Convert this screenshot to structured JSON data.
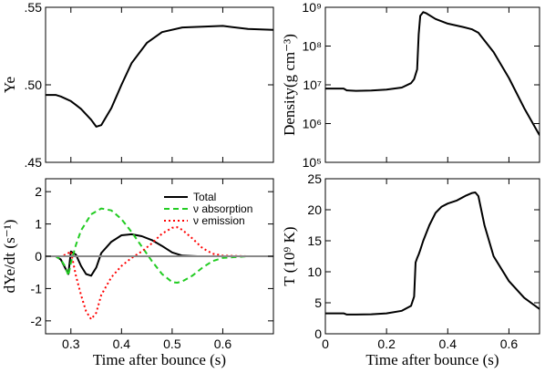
{
  "chart_data": [
    {
      "id": "ye",
      "type": "line",
      "xlabel": "",
      "ylabel": "Ye",
      "xlim": [
        0.25,
        0.7
      ],
      "ylim": [
        0.45,
        0.55
      ],
      "xticks": [
        0.3,
        0.4,
        0.5,
        0.6
      ],
      "yticks": [
        0.45,
        0.5,
        0.55
      ],
      "ytick_labels": [
        ".45",
        ".50",
        ".55"
      ],
      "series": [
        {
          "color": "#000000",
          "dash": "",
          "x": [
            0.25,
            0.27,
            0.28,
            0.29,
            0.3,
            0.31,
            0.32,
            0.33,
            0.34,
            0.35,
            0.36,
            0.38,
            0.4,
            0.42,
            0.45,
            0.48,
            0.52,
            0.56,
            0.6,
            0.65,
            0.7
          ],
          "y": [
            0.4935,
            0.4935,
            0.4925,
            0.491,
            0.4895,
            0.487,
            0.4845,
            0.481,
            0.4775,
            0.473,
            0.474,
            0.485,
            0.5,
            0.514,
            0.527,
            0.534,
            0.537,
            0.5375,
            0.538,
            0.536,
            0.5355
          ]
        }
      ]
    },
    {
      "id": "density",
      "type": "line",
      "xlabel": "",
      "ylabel": "Density(g cm⁻³)",
      "scale_y": "log",
      "xlim": [
        0,
        0.7
      ],
      "ylim": [
        100000,
        1000000000
      ],
      "xticks": [
        0,
        0.2,
        0.4,
        0.6
      ],
      "yticks": [
        100000,
        1000000,
        10000000,
        100000000,
        1000000000
      ],
      "ytick_labels": [
        "10⁵",
        "10⁶",
        "10⁷",
        "10⁸",
        "10⁹"
      ],
      "series": [
        {
          "color": "#000000",
          "dash": "",
          "x": [
            0,
            0.06,
            0.07,
            0.1,
            0.15,
            0.2,
            0.25,
            0.28,
            0.29,
            0.3,
            0.305,
            0.31,
            0.32,
            0.33,
            0.36,
            0.4,
            0.45,
            0.48,
            0.5,
            0.55,
            0.6,
            0.65,
            0.7
          ],
          "y": [
            8000000,
            8000000,
            7200000,
            7000000,
            7100000,
            7500000,
            8500000,
            11000000,
            14000000,
            25000000,
            200000000,
            600000000,
            750000000,
            700000000,
            500000000,
            380000000,
            310000000,
            270000000,
            220000000,
            70000000,
            15000000,
            2500000,
            500000
          ]
        }
      ]
    },
    {
      "id": "dyedt",
      "type": "line",
      "xlabel": "Time after bounce (s)",
      "ylabel": "dYe/dt (s⁻¹)",
      "xlim": [
        0.25,
        0.7
      ],
      "ylim": [
        -2.4,
        2.4
      ],
      "xticks": [
        0.3,
        0.4,
        0.5,
        0.6
      ],
      "yticks": [
        -2,
        -1,
        0,
        1,
        2
      ],
      "ytick_labels": [
        "-2",
        "-1",
        "0",
        "1",
        "2"
      ],
      "legend_position": "top-right",
      "series": [
        {
          "name": "Total",
          "color": "#000000",
          "dash": "",
          "x": [
            0.25,
            0.27,
            0.28,
            0.29,
            0.295,
            0.3,
            0.31,
            0.32,
            0.33,
            0.34,
            0.35,
            0.36,
            0.38,
            0.4,
            0.42,
            0.44,
            0.46,
            0.48,
            0.5,
            0.52,
            0.55,
            0.6,
            0.65,
            0.7
          ],
          "y": [
            0,
            0,
            -0.1,
            -0.4,
            -0.55,
            0.15,
            0.05,
            -0.3,
            -0.55,
            -0.6,
            -0.35,
            0.1,
            0.45,
            0.65,
            0.68,
            0.62,
            0.5,
            0.32,
            0.12,
            0.02,
            0,
            0,
            0,
            0
          ]
        },
        {
          "name": "ν absorption",
          "color": "#22cc22",
          "dash": "6,4",
          "x": [
            0.25,
            0.27,
            0.28,
            0.29,
            0.295,
            0.3,
            0.31,
            0.32,
            0.34,
            0.36,
            0.38,
            0.4,
            0.42,
            0.44,
            0.46,
            0.48,
            0.5,
            0.51,
            0.52,
            0.54,
            0.56,
            0.58,
            0.6,
            0.65,
            0.7
          ],
          "y": [
            0,
            0,
            -0.1,
            -0.35,
            -0.6,
            -0.2,
            0.35,
            0.8,
            1.3,
            1.48,
            1.42,
            1.15,
            0.75,
            0.3,
            -0.15,
            -0.55,
            -0.8,
            -0.82,
            -0.78,
            -0.6,
            -0.35,
            -0.15,
            -0.05,
            0,
            0
          ]
        },
        {
          "name": "ν emission",
          "color": "#ff0000",
          "dash": "2,3",
          "x": [
            0.25,
            0.27,
            0.28,
            0.29,
            0.295,
            0.3,
            0.31,
            0.32,
            0.33,
            0.34,
            0.35,
            0.36,
            0.38,
            0.4,
            0.42,
            0.44,
            0.46,
            0.48,
            0.5,
            0.51,
            0.52,
            0.54,
            0.56,
            0.58,
            0.6,
            0.65,
            0.7
          ],
          "y": [
            0,
            0,
            0,
            0.05,
            0.1,
            0.15,
            -0.6,
            -1.2,
            -1.7,
            -1.95,
            -1.75,
            -1.2,
            -0.65,
            -0.3,
            -0.05,
            0.15,
            0.4,
            0.7,
            0.88,
            0.9,
            0.82,
            0.55,
            0.25,
            0.08,
            0.02,
            0,
            0
          ]
        },
        {
          "name": "",
          "color": "#888888",
          "dash": "",
          "thin": true,
          "x": [
            0.25,
            0.7
          ],
          "y": [
            0,
            0
          ]
        }
      ]
    },
    {
      "id": "temperature",
      "type": "line",
      "xlabel": "Time after bounce (s)",
      "ylabel": "T (10⁹ K)",
      "xlim": [
        0,
        0.7
      ],
      "ylim": [
        0,
        25
      ],
      "xticks": [
        0,
        0.2,
        0.4,
        0.6
      ],
      "yticks": [
        0,
        5,
        10,
        15,
        20,
        25
      ],
      "ytick_labels": [
        "0",
        "5",
        "10",
        "15",
        "20",
        "25"
      ],
      "series": [
        {
          "color": "#000000",
          "dash": "",
          "x": [
            0,
            0.06,
            0.07,
            0.1,
            0.15,
            0.2,
            0.25,
            0.28,
            0.29,
            0.295,
            0.3,
            0.305,
            0.31,
            0.32,
            0.34,
            0.36,
            0.38,
            0.4,
            0.43,
            0.46,
            0.48,
            0.49,
            0.5,
            0.52,
            0.55,
            0.6,
            0.65,
            0.7
          ],
          "y": [
            3.3,
            3.3,
            3.1,
            3.1,
            3.15,
            3.3,
            3.7,
            4.5,
            6,
            11.5,
            12.2,
            12.8,
            13.5,
            15,
            17.5,
            19.5,
            20.5,
            21,
            21.5,
            22.3,
            22.7,
            22.8,
            22.2,
            17.5,
            12.5,
            8.5,
            5.8,
            4.0
          ]
        }
      ]
    }
  ]
}
